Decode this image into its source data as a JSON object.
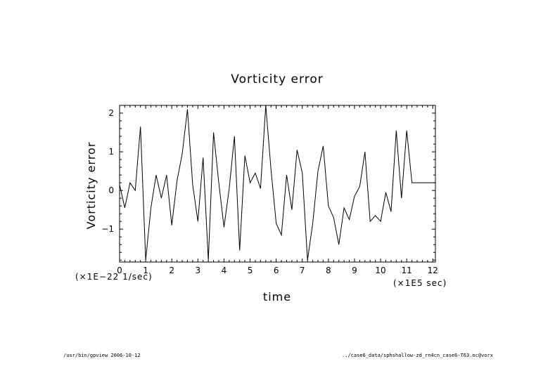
{
  "chart_data": {
    "type": "line",
    "title": "Vorticity error",
    "xlabel": "time",
    "ylabel": "Vorticity error",
    "x_unit_label": "(×1E5 sec)",
    "y_unit_label": "(×1E−22 1/sec)",
    "xlim": [
      0,
      12.1
    ],
    "ylim": [
      -1.85,
      2.2
    ],
    "x_ticks": [
      0,
      1,
      2,
      3,
      4,
      5,
      6,
      7,
      8,
      9,
      10,
      11,
      12
    ],
    "x_tick_labels": [
      "0",
      "1",
      "2",
      "3",
      "4",
      "5",
      "6",
      "7",
      "8",
      "9",
      "10",
      "11",
      "12"
    ],
    "y_ticks": [
      -1,
      0,
      1,
      2
    ],
    "y_tick_labels": [
      "−1",
      "0",
      "1",
      "2"
    ],
    "grid": false,
    "series": [
      {
        "x": [
          0.0,
          0.2,
          0.4,
          0.6,
          0.8,
          1.0,
          1.2,
          1.4,
          1.6,
          1.8,
          2.0,
          2.2,
          2.4,
          2.6,
          2.8,
          3.0,
          3.2,
          3.4,
          3.6,
          3.8,
          4.0,
          4.2,
          4.4,
          4.6,
          4.8,
          5.0,
          5.2,
          5.4,
          5.6,
          5.8,
          6.0,
          6.2,
          6.4,
          6.6,
          6.8,
          7.0,
          7.2,
          7.4,
          7.6,
          7.8,
          8.0,
          8.2,
          8.4,
          8.6,
          8.8,
          9.0,
          9.2,
          9.4,
          9.6,
          9.8,
          10.0,
          10.2,
          10.4,
          10.6,
          10.8,
          11.0,
          11.2,
          11.4,
          11.6,
          11.8,
          12.0,
          12.1
        ],
        "values": [
          0.15,
          -0.45,
          0.2,
          0.0,
          1.65,
          -1.8,
          -0.45,
          0.4,
          -0.2,
          0.4,
          -0.9,
          0.25,
          0.95,
          2.1,
          0.15,
          -0.8,
          0.85,
          -1.8,
          1.5,
          0.2,
          -0.95,
          0.05,
          1.4,
          -1.55,
          0.9,
          0.2,
          0.45,
          0.05,
          2.25,
          0.55,
          -0.85,
          -1.15,
          0.4,
          -0.5,
          1.05,
          0.45,
          -1.8,
          -0.85,
          0.5,
          1.15,
          -0.4,
          -0.7,
          -1.4,
          -0.45,
          -0.75,
          -0.15,
          0.1,
          1.0,
          -0.8,
          -0.65,
          -0.8,
          -0.05,
          -0.55,
          1.55,
          -0.2,
          1.55,
          0.2,
          0.2,
          0.2,
          0.2,
          0.2,
          0.2
        ]
      }
    ]
  },
  "footer": {
    "left": "/usr/bin/gpview  2006-10-12",
    "right": "../case6_data/sphshallow-zd_rn4cn_case6-T63.nc@vorx"
  }
}
